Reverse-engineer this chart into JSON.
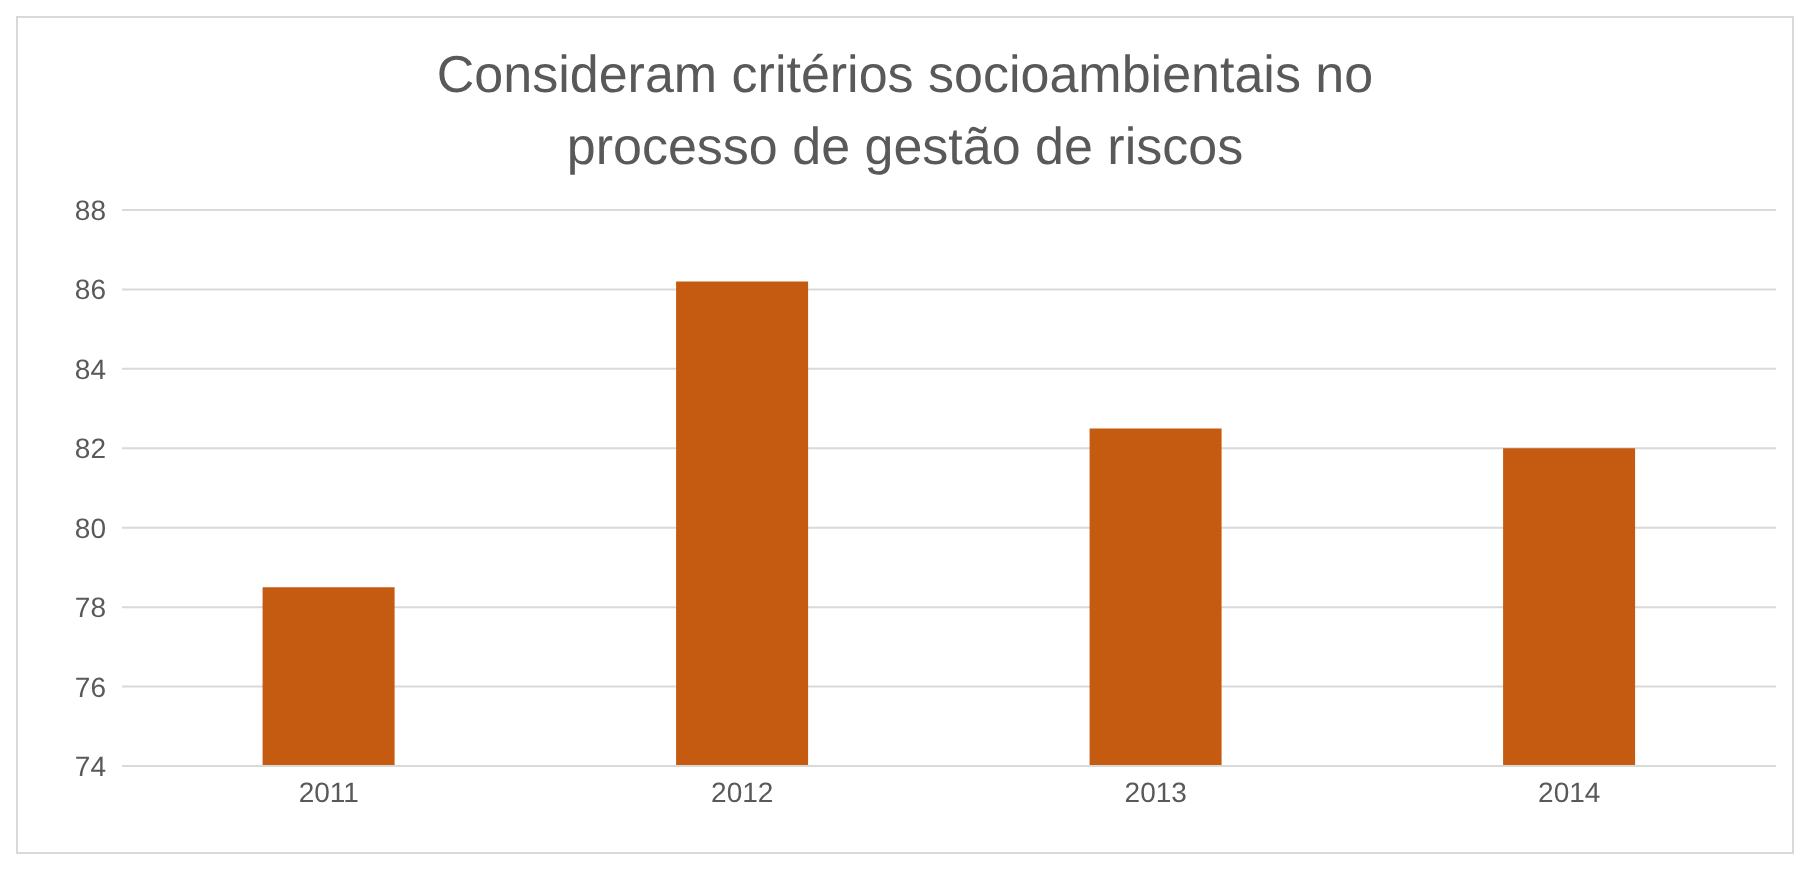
{
  "chart_data": {
    "type": "bar",
    "title": "Consideram critérios socioambientais no processo de gestão de riscos",
    "categories": [
      "2011",
      "2012",
      "2013",
      "2014"
    ],
    "values": [
      78.5,
      86.2,
      82.5,
      82
    ],
    "color": "#c55a11",
    "ylim": [
      74,
      88
    ],
    "yticks": [
      74,
      76,
      78,
      80,
      82,
      84,
      86,
      88
    ],
    "grid": "y"
  }
}
